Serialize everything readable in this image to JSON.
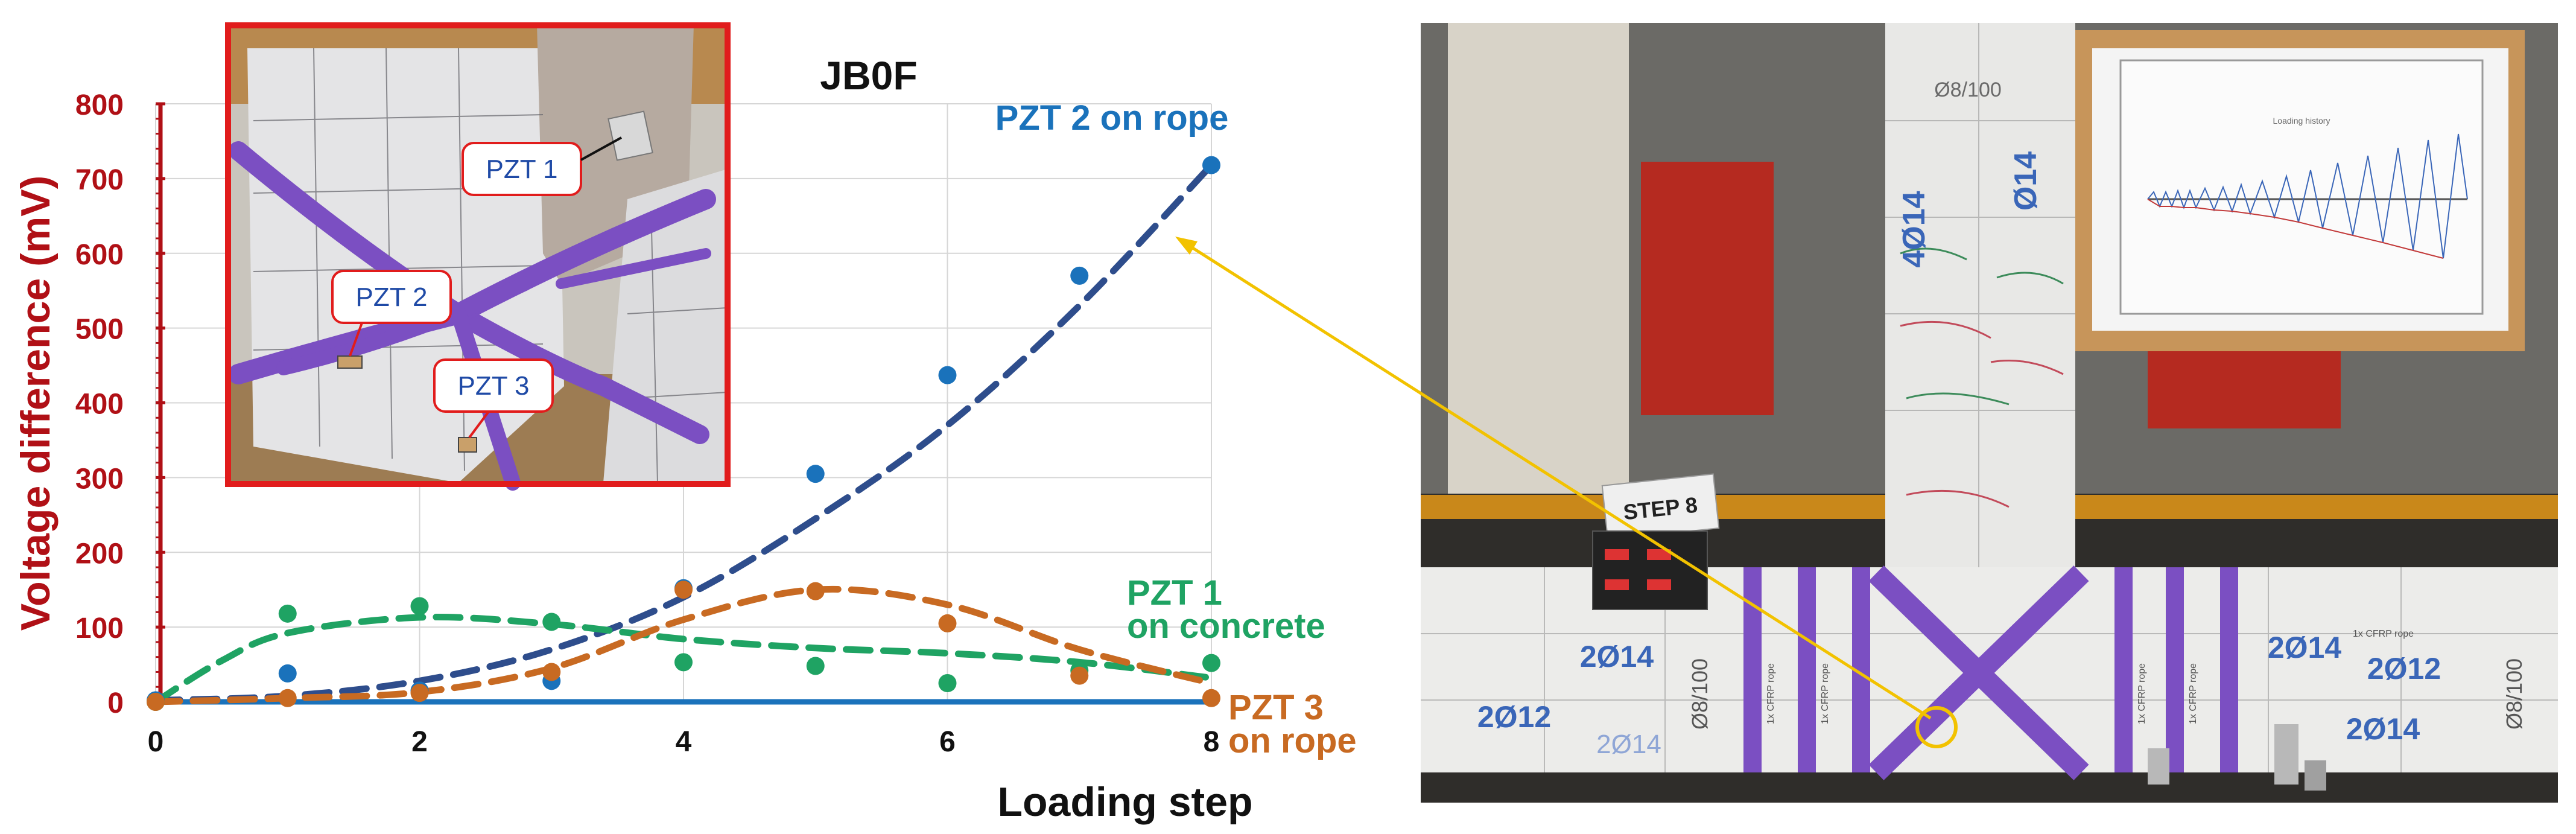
{
  "chart_data": {
    "type": "scatter",
    "title": "JB0F",
    "xlabel": "Loading step",
    "ylabel": "Voltage difference (mV)",
    "xlim": [
      0,
      8
    ],
    "ylim": [
      0,
      800
    ],
    "x_ticks": [
      "0",
      "2",
      "4",
      "6",
      "8"
    ],
    "y_ticks": [
      "0",
      "100",
      "200",
      "300",
      "400",
      "500",
      "600",
      "700",
      "800"
    ],
    "grid": true,
    "series": [
      {
        "name": "PZT 2 on rope",
        "color": "#1a72bb",
        "trend_color": "#2e4d8c",
        "x": [
          0,
          1,
          2,
          3,
          4,
          5,
          6,
          7,
          8
        ],
        "y": [
          2,
          38,
          15,
          28,
          152,
          305,
          437,
          570,
          718
        ],
        "trend": [
          [
            0,
            2
          ],
          [
            1,
            8
          ],
          [
            2,
            28
          ],
          [
            3,
            70
          ],
          [
            4,
            140
          ],
          [
            5,
            245
          ],
          [
            6,
            370
          ],
          [
            7,
            530
          ],
          [
            8,
            718
          ]
        ]
      },
      {
        "name": "PZT 1 on concrete",
        "color": "#1fa363",
        "trend_color": "#1fa363",
        "x": [
          0,
          1,
          2,
          3,
          4,
          5,
          6,
          7,
          8
        ],
        "y": [
          0,
          118,
          128,
          107,
          53,
          48,
          25,
          42,
          52
        ],
        "trend": [
          [
            0,
            0
          ],
          [
            0.5,
            55
          ],
          [
            1,
            92
          ],
          [
            2,
            113
          ],
          [
            3,
            104
          ],
          [
            4,
            84
          ],
          [
            5,
            72
          ],
          [
            6,
            65
          ],
          [
            7,
            53
          ],
          [
            8,
            32
          ]
        ]
      },
      {
        "name": "PZT 3 on rope",
        "color": "#c86a22",
        "trend_color": "#c86a22",
        "x": [
          0,
          1,
          2,
          3,
          4,
          5,
          6,
          7,
          8
        ],
        "y": [
          0,
          5,
          12,
          40,
          150,
          148,
          105,
          35,
          5
        ],
        "trend": [
          [
            0,
            0
          ],
          [
            1,
            5
          ],
          [
            2,
            13
          ],
          [
            3,
            45
          ],
          [
            4,
            110
          ],
          [
            5,
            150
          ],
          [
            6,
            130
          ],
          [
            7,
            70
          ],
          [
            8,
            25
          ]
        ]
      },
      {
        "name": "baseline",
        "color": "#1a72bb",
        "x": [
          0,
          8
        ],
        "y": [
          0,
          0
        ]
      }
    ],
    "legend_labels": [
      {
        "line1": "PZT 2 on rope",
        "line2": ""
      },
      {
        "line1": "PZT 1",
        "line2": "on concrete"
      },
      {
        "line1": "PZT 3",
        "line2": "on rope"
      }
    ]
  },
  "inset": {
    "labels": [
      "PZT 1",
      "PZT 2",
      "PZT 3"
    ],
    "frame_color": "#e11c1c",
    "wrap_color": "#7b4fc2"
  },
  "photo": {
    "step_label": "STEP 8",
    "column_marks": [
      "Ø8/100",
      "4Ø14",
      "Ø14"
    ],
    "beam_marks": [
      "2Ø14",
      "2Ø12",
      "2Ø14",
      "Ø8/100",
      "2Ø14",
      "2Ø12",
      "2Ø14",
      "Ø8/100"
    ],
    "rope_marks": [
      "1x CFRP rope",
      "1x CFRP rope",
      "1x CFRP rope",
      "1x CFRP rope",
      "1x CFRP rope"
    ],
    "board_title": "Loading history",
    "callout_color": "#f2c200"
  }
}
